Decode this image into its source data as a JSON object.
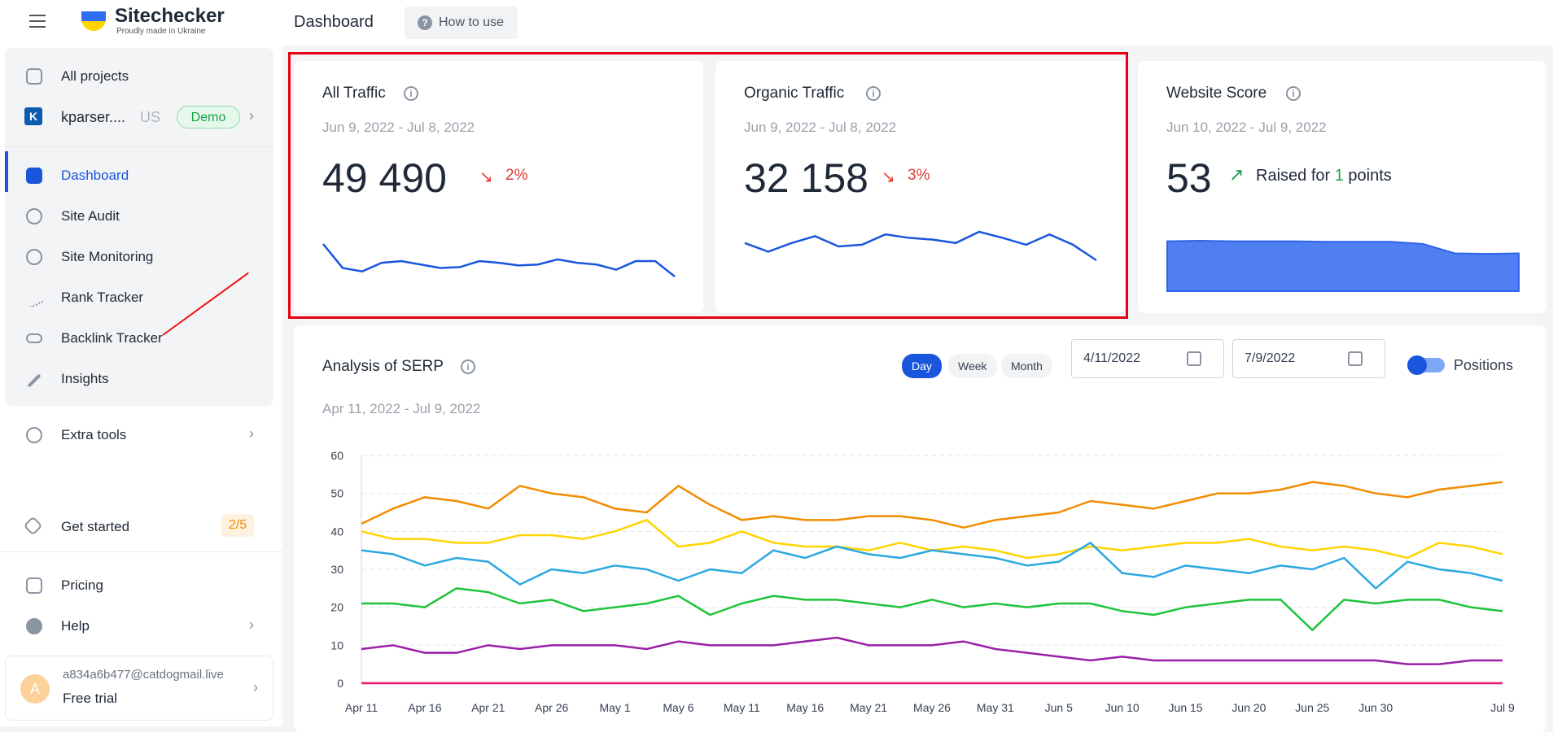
{
  "header": {
    "logo": "Sitechecker",
    "tagline": "Proudly made in Ukraine",
    "page_title": "Dashboard",
    "how_to": "How to use"
  },
  "sidebar": {
    "all_projects": "All projects",
    "project": {
      "initial": "K",
      "name": "kparser....",
      "region": "US",
      "badge": "Demo"
    },
    "items": [
      "Dashboard",
      "Site Audit",
      "Site Monitoring",
      "Rank Tracker",
      "Backlink Tracker",
      "Insights"
    ],
    "extra_tools": "Extra tools",
    "get_started": {
      "label": "Get started",
      "progress": "2/5"
    },
    "pricing": "Pricing",
    "help": "Help",
    "user": {
      "avatar": "A",
      "email": "a834a6b477@catdogmail.live",
      "plan": "Free trial"
    }
  },
  "cards": [
    {
      "title": "All Traffic",
      "date_range": "Jun 9, 2022 - Jul 8, 2022",
      "value": "49 490",
      "change": "2%",
      "trend": [
        60,
        32,
        28,
        38,
        40,
        36,
        32,
        33,
        40,
        38,
        35,
        36,
        42,
        38,
        36,
        30,
        40,
        40,
        22
      ]
    },
    {
      "title": "Organic Traffic",
      "date_range": "Jun 9, 2022 - Jul 8, 2022",
      "value": "32 158",
      "change": "3%",
      "trend": [
        42,
        32,
        42,
        50,
        38,
        40,
        52,
        48,
        46,
        42,
        55,
        48,
        40,
        52,
        40,
        22
      ]
    }
  ],
  "website_score": {
    "title": "Website Score",
    "date_range": "Jun 10, 2022 - Jul 9, 2022",
    "value": "53",
    "note_prefix": "Raised for",
    "note_number": "1",
    "note_suffix": "points",
    "trend": [
      95,
      96,
      95,
      95,
      95,
      94,
      94,
      94,
      90,
      72,
      71,
      72
    ]
  },
  "controls": {
    "periods": [
      "Day",
      "Week",
      "Month"
    ],
    "start": "4/11/2022",
    "end": "7/9/2022",
    "toggle": "Positions"
  },
  "chart_data": {
    "type": "line",
    "title": "Analysis of SERP",
    "subtitle": "Apr 11, 2022 - Jul 9, 2022",
    "categories": [
      "Apr 11",
      null,
      "Apr 16",
      null,
      "Apr 21",
      null,
      "Apr 26",
      null,
      "May 1",
      null,
      "May 6",
      null,
      "May 11",
      null,
      "May 16",
      null,
      "May 21",
      null,
      "May 26",
      null,
      "May 31",
      null,
      "Jun 5",
      null,
      "Jun 10",
      null,
      "Jun 15",
      null,
      "Jun 20",
      null,
      "Jun 25",
      null,
      "Jun 30",
      null,
      null,
      null,
      "Jul 9"
    ],
    "series": [
      {
        "color": "#f28c00",
        "values": [
          42,
          46,
          49,
          48,
          46,
          52,
          50,
          49,
          46,
          45,
          52,
          47,
          43,
          44,
          43,
          43,
          44,
          44,
          43,
          41,
          43,
          44,
          45,
          48,
          47,
          46,
          48,
          50,
          50,
          51,
          53,
          52,
          50,
          49,
          51,
          52,
          53
        ]
      },
      {
        "color": "#ffd400",
        "values": [
          40,
          38,
          38,
          37,
          37,
          39,
          39,
          38,
          40,
          43,
          36,
          37,
          40,
          37,
          36,
          36,
          35,
          37,
          35,
          36,
          35,
          33,
          34,
          36,
          35,
          36,
          37,
          37,
          38,
          36,
          35,
          36,
          35,
          33,
          37,
          36,
          34
        ]
      },
      {
        "color": "#2ca8e0",
        "values": [
          35,
          34,
          31,
          33,
          32,
          26,
          30,
          29,
          31,
          30,
          27,
          30,
          29,
          35,
          33,
          36,
          34,
          33,
          35,
          34,
          33,
          31,
          32,
          37,
          29,
          28,
          31,
          30,
          29,
          31,
          30,
          33,
          25,
          32,
          30,
          29,
          27
        ]
      },
      {
        "color": "#1fc43a",
        "values": [
          21,
          21,
          20,
          25,
          24,
          21,
          22,
          19,
          20,
          21,
          23,
          18,
          21,
          23,
          22,
          22,
          21,
          20,
          22,
          20,
          21,
          20,
          21,
          21,
          19,
          18,
          20,
          21,
          22,
          22,
          14,
          22,
          21,
          22,
          22,
          20,
          19
        ]
      },
      {
        "color": "#9b1fa7",
        "values": [
          9,
          10,
          8,
          8,
          10,
          9,
          10,
          10,
          10,
          9,
          11,
          10,
          10,
          10,
          11,
          12,
          10,
          10,
          10,
          11,
          9,
          8,
          7,
          6,
          7,
          6,
          6,
          6,
          6,
          6,
          6,
          6,
          6,
          5,
          5,
          6,
          6
        ]
      },
      {
        "color": "#e6196e",
        "values": [
          0,
          0,
          0,
          0,
          0,
          0,
          0,
          0,
          0,
          0,
          0,
          0,
          0,
          0,
          0,
          0,
          0,
          0,
          0,
          0,
          0,
          0,
          0,
          0,
          0,
          0,
          0,
          0,
          0,
          0,
          0,
          0,
          0,
          0,
          0,
          0,
          0
        ]
      }
    ],
    "ylim": [
      0,
      60
    ],
    "yticks": [
      0,
      10,
      20,
      30,
      40,
      50,
      60
    ],
    "grid": true
  }
}
